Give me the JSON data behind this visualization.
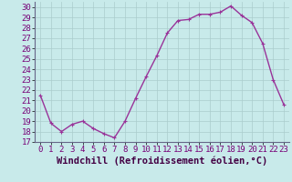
{
  "x": [
    0,
    1,
    2,
    3,
    4,
    5,
    6,
    7,
    8,
    9,
    10,
    11,
    12,
    13,
    14,
    15,
    16,
    17,
    18,
    19,
    20,
    21,
    22,
    23
  ],
  "y": [
    21.5,
    18.8,
    18.0,
    18.7,
    19.0,
    18.3,
    17.8,
    17.4,
    19.0,
    21.2,
    23.3,
    25.3,
    27.5,
    28.7,
    28.8,
    29.3,
    29.3,
    29.5,
    30.1,
    29.2,
    28.5,
    26.5,
    23.0,
    20.6
  ],
  "line_color": "#993399",
  "marker": "+",
  "marker_size": 3,
  "xlabel": "Windchill (Refroidissement éolien,°C)",
  "xlim": [
    -0.5,
    23.5
  ],
  "ylim": [
    17,
    30.5
  ],
  "yticks": [
    17,
    18,
    19,
    20,
    21,
    22,
    23,
    24,
    25,
    26,
    27,
    28,
    29,
    30
  ],
  "xticks": [
    0,
    1,
    2,
    3,
    4,
    5,
    6,
    7,
    8,
    9,
    10,
    11,
    12,
    13,
    14,
    15,
    16,
    17,
    18,
    19,
    20,
    21,
    22,
    23
  ],
  "bg_color": "#c8eaea",
  "grid_color": "#aacccc",
  "tick_fontsize": 6.5,
  "xlabel_fontsize": 7.5,
  "line_width": 1.0,
  "spine_color": "#666688"
}
